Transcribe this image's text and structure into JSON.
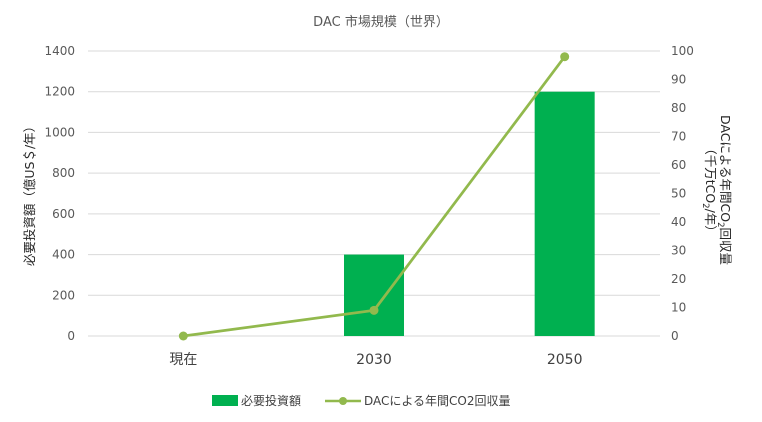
{
  "chart_data": {
    "type": "bar",
    "title": "DAC 市場規模（世界）",
    "categories": [
      "現在",
      "2030",
      "2050"
    ],
    "y_left": {
      "label": "必要投資額（億US＄/年）",
      "lim": [
        0,
        1400
      ],
      "ticks": [
        0,
        200,
        400,
        600,
        800,
        1000,
        1200,
        1400
      ]
    },
    "y_right": {
      "label_line1_pre": "DACによる年間CO",
      "label_line1_sub": "2",
      "label_line1_post": "回収量",
      "label_line2_pre": "（千万tCO",
      "label_line2_sub": "2",
      "label_line2_post": "/年）",
      "lim": [
        0,
        100
      ],
      "ticks": [
        0,
        10,
        20,
        30,
        40,
        50,
        60,
        70,
        80,
        90,
        100
      ]
    },
    "series": [
      {
        "name": "必要投資額",
        "kind": "bar",
        "axis": "left",
        "color": "#00b050",
        "values": [
          0,
          400,
          1200
        ]
      },
      {
        "name": "DACによる年間CO2回収量",
        "kind": "line",
        "axis": "right",
        "color": "#92b94d",
        "values": [
          0,
          9,
          98
        ]
      }
    ],
    "grid": true,
    "legend_position": "bottom"
  }
}
